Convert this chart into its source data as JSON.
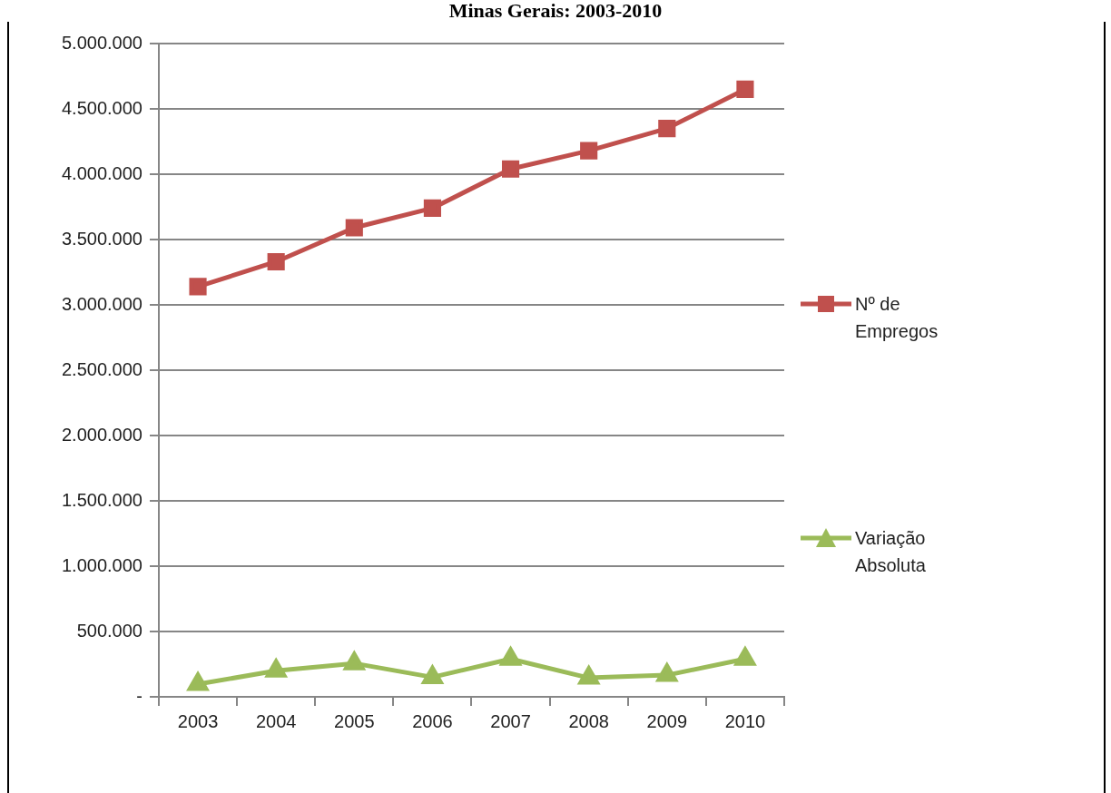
{
  "chart_data": {
    "type": "line",
    "title": "Minas Gerais: 2003-2010",
    "categories": [
      "2003",
      "2004",
      "2005",
      "2006",
      "2007",
      "2008",
      "2009",
      "2010"
    ],
    "series": [
      {
        "name": "Nº de Empregos",
        "color": "#c0504d",
        "marker": "square",
        "values": [
          3140000,
          3330000,
          3590000,
          3740000,
          4040000,
          4180000,
          4350000,
          4650000
        ]
      },
      {
        "name": "Variação Absoluta",
        "color": "#9bbb59",
        "marker": "triangle",
        "values": [
          97000,
          200000,
          256000,
          150000,
          290000,
          145000,
          166000,
          290000
        ]
      }
    ],
    "ylim": [
      0,
      5000000
    ],
    "yticks": [
      {
        "value": 0,
        "label": "-"
      },
      {
        "value": 500000,
        "label": "500.000"
      },
      {
        "value": 1000000,
        "label": "1.000.000"
      },
      {
        "value": 1500000,
        "label": "1.500.000"
      },
      {
        "value": 2000000,
        "label": "2.000.000"
      },
      {
        "value": 2500000,
        "label": "2.500.000"
      },
      {
        "value": 3000000,
        "label": "3.000.000"
      },
      {
        "value": 3500000,
        "label": "3.500.000"
      },
      {
        "value": 4000000,
        "label": "4.000.000"
      },
      {
        "value": 4500000,
        "label": "4.500.000"
      },
      {
        "value": 5000000,
        "label": "5.000.000"
      }
    ],
    "grid": "y",
    "legend": "right",
    "line_style": "solid"
  }
}
